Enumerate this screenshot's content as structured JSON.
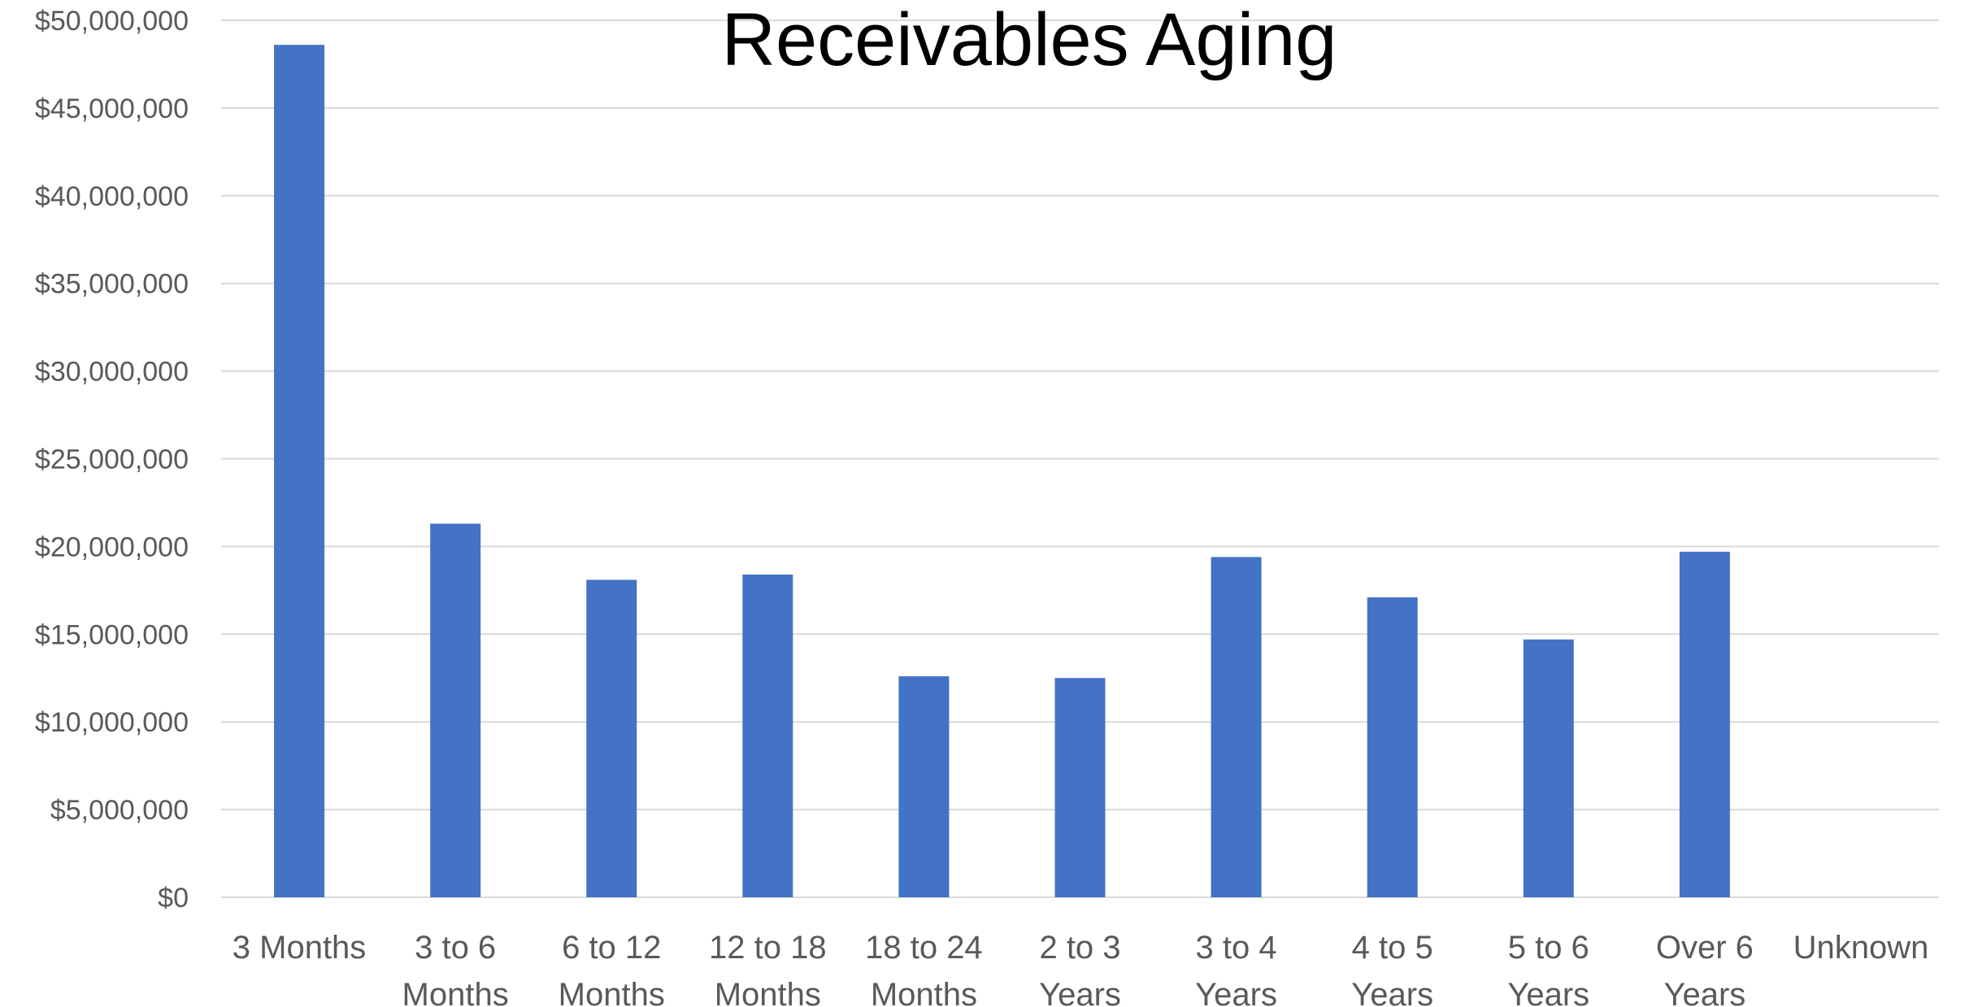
{
  "chart_data": {
    "type": "bar",
    "title": "Receivables Aging",
    "xlabel": "",
    "ylabel": "",
    "ylim": [
      0,
      50000000
    ],
    "y_ticks": [
      0,
      5000000,
      10000000,
      15000000,
      20000000,
      25000000,
      30000000,
      35000000,
      40000000,
      45000000,
      50000000
    ],
    "y_tick_labels": [
      "$0",
      "$5,000,000",
      "$10,000,000",
      "$15,000,000",
      "$20,000,000",
      "$25,000,000",
      "$30,000,000",
      "$35,000,000",
      "$40,000,000",
      "$45,000,000",
      "$50,000,000"
    ],
    "grid": true,
    "legend": "none",
    "bar_color": "#4472c4",
    "categories": [
      [
        "3 Months"
      ],
      [
        "3 to 6",
        "Months"
      ],
      [
        "6 to 12",
        "Months"
      ],
      [
        "12 to 18",
        "Months"
      ],
      [
        "18 to 24",
        "Months"
      ],
      [
        "2 to 3",
        "Years"
      ],
      [
        "3 to 4",
        "Years"
      ],
      [
        "4 to 5",
        "Years"
      ],
      [
        "5 to 6",
        "Years"
      ],
      [
        "Over 6",
        "Years"
      ],
      [
        "Unknown"
      ]
    ],
    "values": [
      48600000,
      21300000,
      18100000,
      18400000,
      12600000,
      12500000,
      19400000,
      17100000,
      14700000,
      19700000,
      0
    ]
  }
}
